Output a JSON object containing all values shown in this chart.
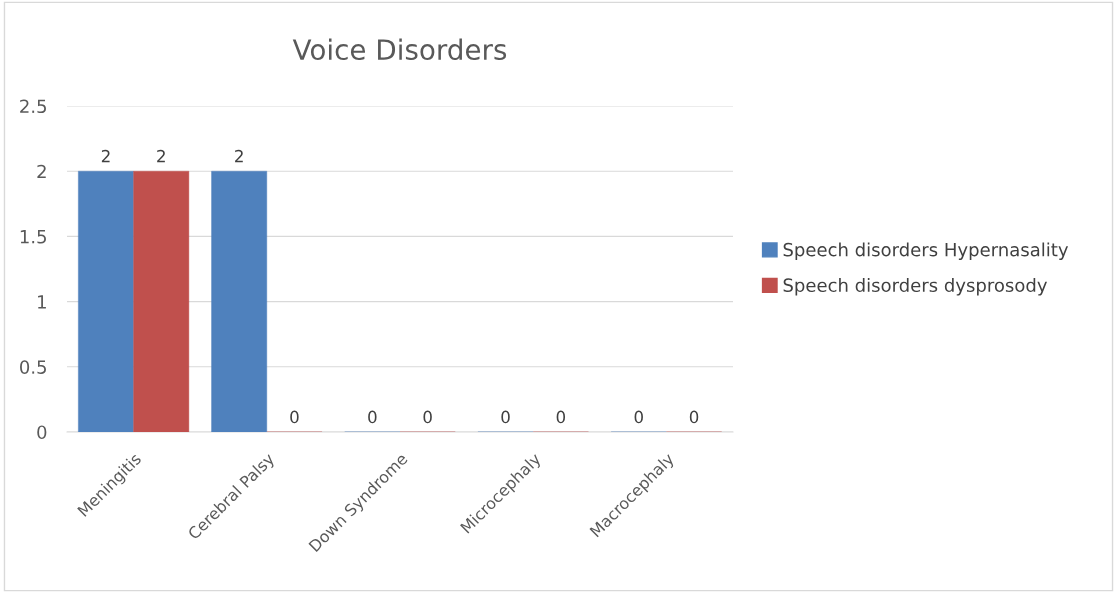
{
  "chart_data": {
    "type": "bar",
    "title": "Voice Disorders",
    "categories": [
      "Meningitis",
      "Cerebral Palsy",
      "Down Syndrome",
      "Microcephaly",
      "Macrocephaly"
    ],
    "series": [
      {
        "name": "Speech disorders Hypernasality",
        "color": "#4f81bd",
        "values": [
          2,
          2,
          0,
          0,
          0
        ]
      },
      {
        "name": "Speech disorders dysprosody",
        "color": "#c0504d",
        "values": [
          2,
          0,
          0,
          0,
          0
        ]
      }
    ],
    "ylim": [
      0,
      2.5
    ],
    "yticks": [
      0,
      0.5,
      1,
      1.5,
      2,
      2.5
    ],
    "grid": "y",
    "legend": "right",
    "data_labels": true
  }
}
